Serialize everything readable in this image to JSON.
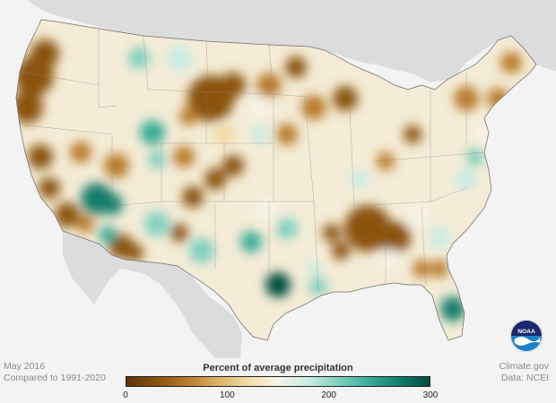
{
  "map": {
    "background_color": "#f3f3f3",
    "land_neutral_color": "#f4ecd6",
    "neighbor_land_color": "#dcdcdc",
    "water_color": "#f3f3f3",
    "dry_regions": [
      "Pacific Northwest coast",
      "Northern California",
      "Southern California coast",
      "Arizona–New Mexico border",
      "Montana–Wyoming–South Dakota",
      "Northern Minnesota",
      "Nebraska–Kansas",
      "Lower Mississippi Valley",
      "Tennessee–Alabama",
      "Northeast",
      "Georgia"
    ],
    "wet_regions": [
      "Southern Nevada–Arizona",
      "Central Colorado",
      "Idaho–Montana",
      "Texas Hill Country",
      "Louisiana coast",
      "South Florida",
      "Mid-Atlantic coast",
      "Carolinas"
    ]
  },
  "footer": {
    "date": "May 2016",
    "baseline": "Compared to 1991-2020",
    "credit": "Climate.gov",
    "source": "Data: NCEI"
  },
  "legend": {
    "title": "Percent of average precipitation",
    "ticks": [
      "0",
      "100",
      "200",
      "300"
    ],
    "tick_values": [
      0,
      100,
      200,
      300
    ],
    "range": [
      0,
      300
    ],
    "colors": [
      "#5a3408",
      "#8a520f",
      "#b97a2a",
      "#dcb067",
      "#f2dca5",
      "#f7f3e6",
      "#c8ece4",
      "#7fd0c0",
      "#38ad99",
      "#137e6c",
      "#034d3e"
    ]
  },
  "logo": {
    "name": "noaa-logo",
    "text": "NOAA",
    "top_color": "#1a2a6c",
    "bottom_color": "#1f80c8"
  }
}
